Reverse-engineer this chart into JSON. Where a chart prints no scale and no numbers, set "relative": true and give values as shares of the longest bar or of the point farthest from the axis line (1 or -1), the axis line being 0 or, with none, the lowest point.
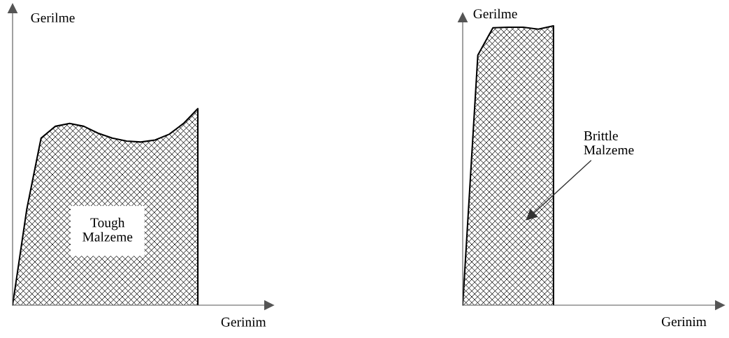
{
  "chart_data": [
    {
      "type": "area",
      "relative": true,
      "ylabel": "Gerilme",
      "xlabel": "Gerinim",
      "color": "#000000",
      "annotations": [
        "Tough\nMalzeme"
      ],
      "categories": [
        null,
        null,
        null,
        null,
        null,
        null,
        null,
        null,
        null,
        null,
        null,
        null,
        null,
        null,
        null,
        null,
        null,
        null,
        null
      ],
      "values": [
        0,
        0.49,
        0.85,
        0.91,
        0.925,
        0.91,
        0.875,
        0.85,
        0.835,
        0.83,
        0.84,
        0.87,
        0.925,
        1,
        null,
        null,
        null,
        null,
        null
      ]
    },
    {
      "type": "area",
      "relative": true,
      "ylabel": "Gerilme",
      "xlabel": "Gerinim",
      "color": "#000000",
      "annotations": [
        "Brittle\nMalzeme"
      ],
      "categories": [
        null,
        null,
        null,
        null,
        null,
        null,
        null,
        null,
        null,
        null,
        null,
        null,
        null,
        null,
        null,
        null,
        null,
        null
      ],
      "values": [
        0,
        0.895,
        0.993,
        0.995,
        0.995,
        0.988,
        1,
        null,
        null,
        null,
        null,
        null,
        null,
        null,
        null,
        null,
        null,
        null
      ]
    }
  ]
}
